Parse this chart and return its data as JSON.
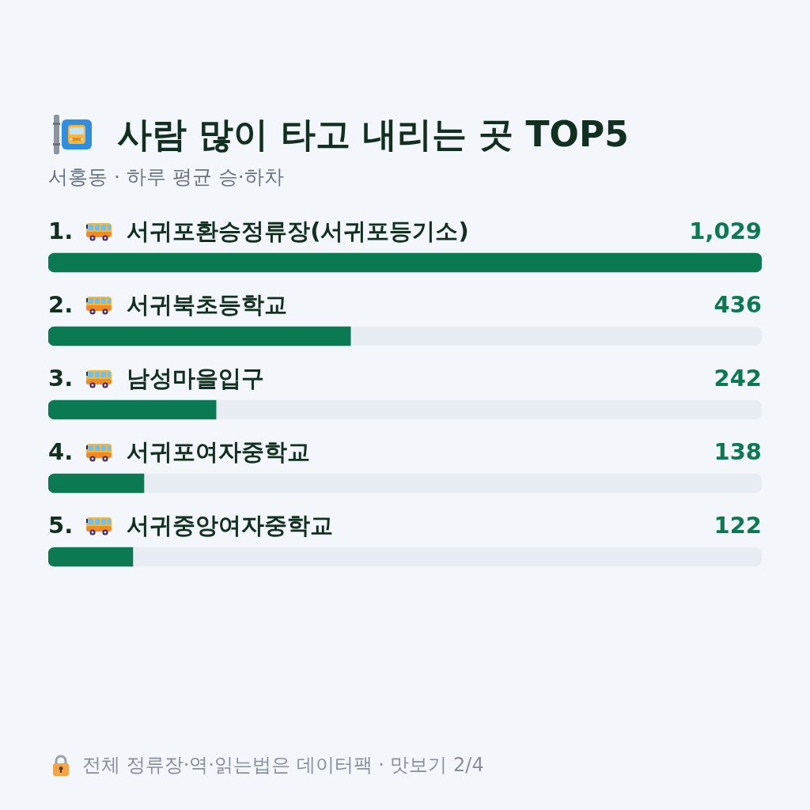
{
  "chart_data": {
    "type": "bar",
    "orientation": "horizontal",
    "title": "사람 많이 타고 내리는 곳 TOP5",
    "subtitle": "서홍동 · 하루 평균 승·하차",
    "categories": [
      "1. 서귀포환승정류장(서귀포등기소)",
      "2. 서귀북초등학교",
      "3. 남성마을입구",
      "4. 서귀포여자중학교",
      "5. 서귀중앙여자중학교"
    ],
    "values": [
      1029,
      436,
      242,
      138,
      122
    ],
    "color": "#0b7a52",
    "value_labels": [
      "1,029",
      "436",
      "242",
      "138",
      "122"
    ],
    "annotations": [
      "전체 정류장·역·읽는법은 데이터팩 · 맛보기 2/4"
    ]
  }
}
